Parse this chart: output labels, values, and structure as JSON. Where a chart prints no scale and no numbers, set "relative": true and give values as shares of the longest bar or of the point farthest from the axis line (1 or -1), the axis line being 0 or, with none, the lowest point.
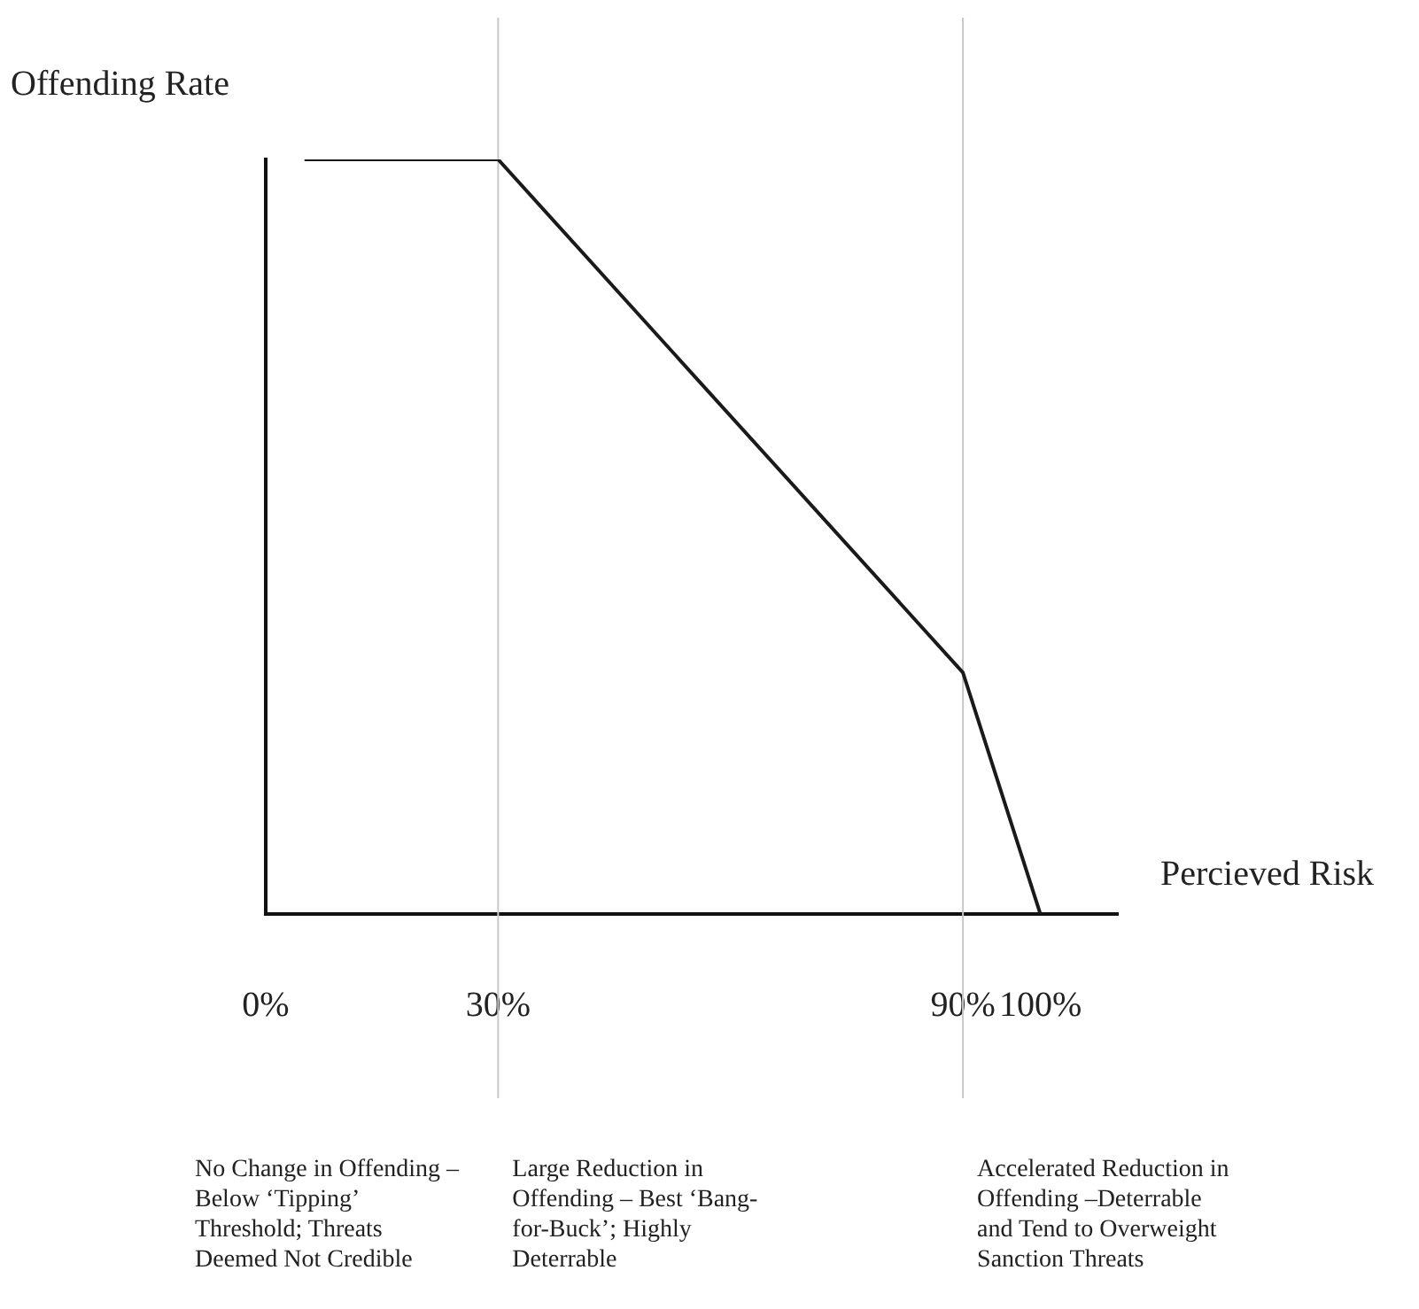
{
  "chart_data": {
    "type": "line",
    "relative": true,
    "xlabel": "Percieved Risk",
    "ylabel": "Offending Rate",
    "x": [
      5,
      30,
      90,
      100
    ],
    "series": [
      {
        "color": "#1a1a1a",
        "values": [
          1,
          1,
          0.32,
          0
        ]
      }
    ],
    "xlim": [
      0,
      110
    ],
    "xticks": [
      {
        "value": 0,
        "label": "0%"
      },
      {
        "value": 30,
        "label": "30%"
      },
      {
        "value": 90,
        "label": "90%"
      },
      {
        "value": 100,
        "label": "100%"
      }
    ],
    "ref_lines": [
      {
        "axis": "x",
        "value": 30,
        "color": "#c8c8c8"
      },
      {
        "axis": "x",
        "value": 90,
        "color": "#c8c8c8"
      }
    ],
    "annotations": [
      "No Change in Offending – Below ‘Tipping’ Threshold; Threats Deemed Not Credible",
      "Large Reduction in Offending – Best ‘Bang-for-Buck’; Highly Deterrable",
      "Accelerated Reduction in Offending –Deterrable and Tend to Overweight Sanction Threats"
    ],
    "grid": false,
    "legend": false,
    "marker": "none",
    "line_style": "solid"
  }
}
